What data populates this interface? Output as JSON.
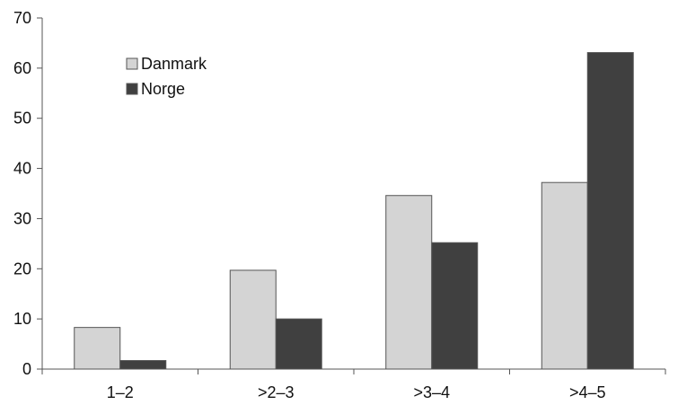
{
  "chart_data": {
    "type": "bar",
    "categories": [
      "1–2",
      ">2–3",
      ">3–4",
      ">4–5"
    ],
    "series": [
      {
        "name": "Danmark",
        "values": [
          8.3,
          19.7,
          34.6,
          37.2
        ],
        "color": "#d4d4d4"
      },
      {
        "name": "Norge",
        "values": [
          1.7,
          10.0,
          25.2,
          63.1
        ],
        "color": "#404040"
      }
    ],
    "ylim": [
      0,
      70
    ],
    "yticks": [
      "0",
      "10",
      "20",
      "30",
      "40",
      "50",
      "60",
      "70"
    ],
    "grid": false,
    "legend_position": "top-left"
  }
}
